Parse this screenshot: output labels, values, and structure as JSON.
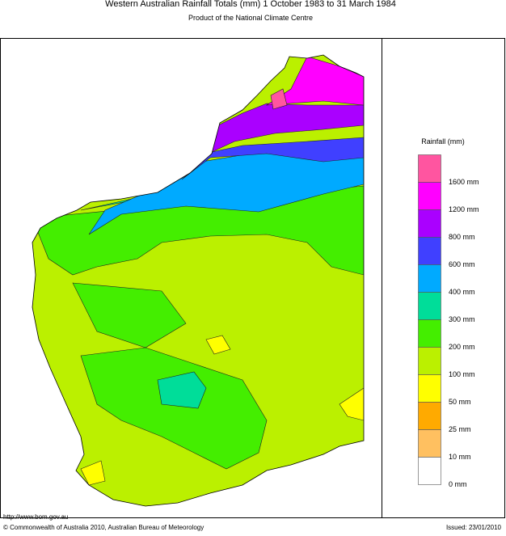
{
  "header": {
    "title": "Western Australian Rainfall Totals (mm) 1 October 1983 to 31 March 1984",
    "subtitle": "Product of the National Climate Centre"
  },
  "legend": {
    "title": "Rainfall (mm)",
    "items": [
      {
        "color": "#ff55a0",
        "label": "1600 mm"
      },
      {
        "color": "#ff00ff",
        "label": "1200 mm"
      },
      {
        "color": "#aa00ff",
        "label": "800 mm"
      },
      {
        "color": "#4040ff",
        "label": "600 mm"
      },
      {
        "color": "#00aaff",
        "label": "400 mm"
      },
      {
        "color": "#00dd99",
        "label": "300 mm"
      },
      {
        "color": "#44ee00",
        "label": "200 mm"
      },
      {
        "color": "#bbf000",
        "label": "100 mm"
      },
      {
        "color": "#ffff00",
        "label": "50 mm"
      },
      {
        "color": "#ffaa00",
        "label": "25 mm"
      },
      {
        "color": "#ffc060",
        "label": "10 mm"
      },
      {
        "color": "#ffffff",
        "label": "0 mm"
      }
    ]
  },
  "footer": {
    "url": "http://www.bom.gov.au",
    "copyright": "© Commonwealth of Australia 2010, Australian Bureau of Meteorology",
    "issued": "Issued: 23/01/2010"
  }
}
